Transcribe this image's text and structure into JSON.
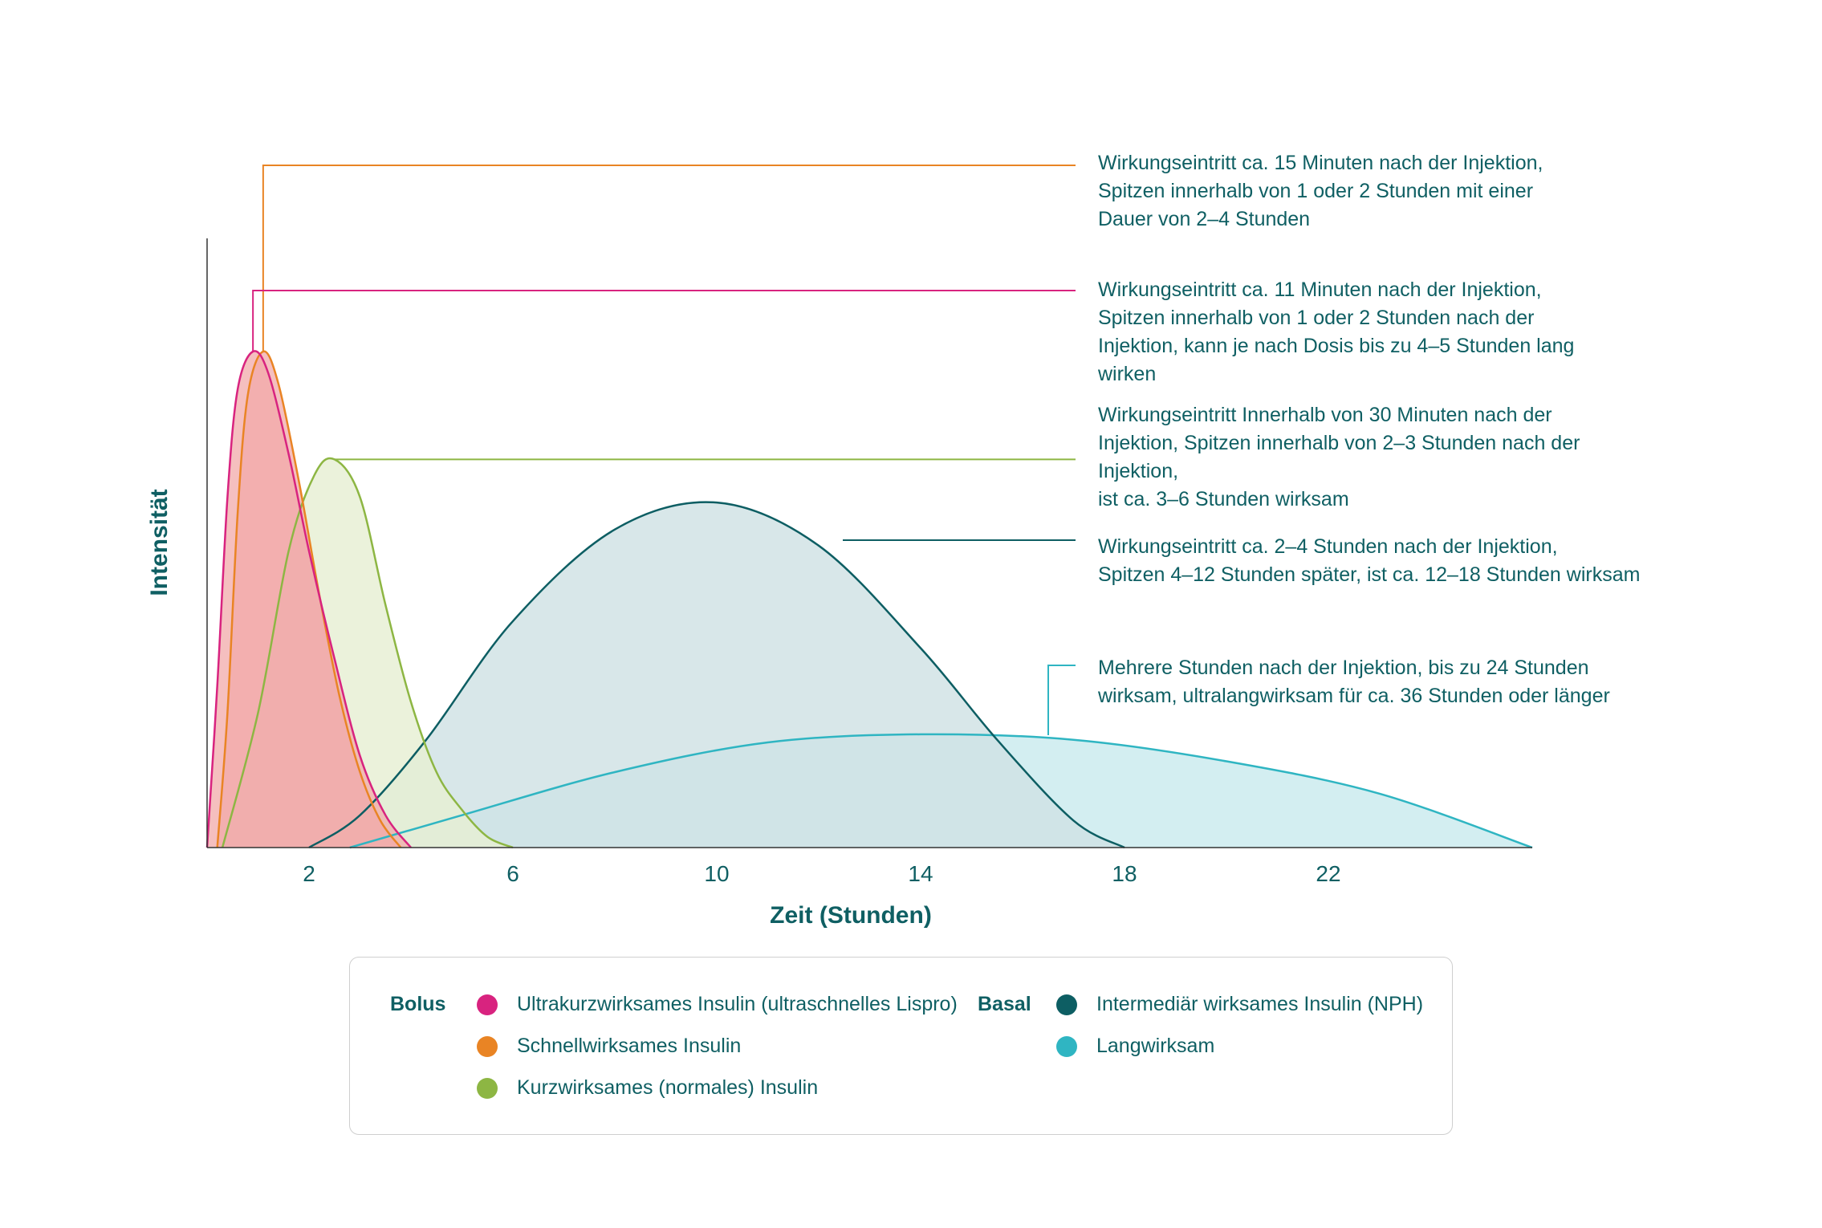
{
  "chart_data": {
    "type": "area",
    "xlabel": "Zeit (Stunden)",
    "ylabel": "Intensität",
    "x_ticks": [
      2,
      6,
      10,
      14,
      18,
      22
    ],
    "xlim": [
      0,
      26
    ],
    "ylim": [
      0,
      1
    ],
    "grid": false,
    "legend_position": "bottom",
    "series": [
      {
        "name": "Ultrakurzwirksames Insulin (ultraschnelles Lispro)",
        "group": "Bolus",
        "color": "#d8237f",
        "fill": "#f2aaa9",
        "peak": [
          0.9,
          0.92
        ],
        "points": [
          [
            0,
            0
          ],
          [
            0.2,
            0.3
          ],
          [
            0.4,
            0.65
          ],
          [
            0.6,
            0.85
          ],
          [
            0.9,
            0.92
          ],
          [
            1.2,
            0.88
          ],
          [
            1.6,
            0.73
          ],
          [
            2,
            0.55
          ],
          [
            2.5,
            0.35
          ],
          [
            3,
            0.17
          ],
          [
            3.5,
            0.06
          ],
          [
            4,
            0
          ]
        ]
      },
      {
        "name": "Schnellwirksames Insulin",
        "group": "Bolus",
        "color": "#e98424",
        "fill": "#f2aaa9",
        "peak": [
          1.1,
          0.92
        ],
        "points": [
          [
            0.2,
            0
          ],
          [
            0.4,
            0.25
          ],
          [
            0.6,
            0.62
          ],
          [
            0.8,
            0.84
          ],
          [
            1.1,
            0.92
          ],
          [
            1.4,
            0.86
          ],
          [
            1.8,
            0.68
          ],
          [
            2.2,
            0.47
          ],
          [
            2.6,
            0.28
          ],
          [
            3,
            0.14
          ],
          [
            3.4,
            0.05
          ],
          [
            3.8,
            0
          ]
        ]
      },
      {
        "name": "Kurzwirksames (normales) Insulin",
        "group": "Bolus",
        "color": "#8db643",
        "fill": "#e6efd3",
        "peak": [
          2.5,
          0.72
        ],
        "points": [
          [
            0.3,
            0
          ],
          [
            1,
            0.25
          ],
          [
            1.6,
            0.55
          ],
          [
            2.1,
            0.69
          ],
          [
            2.5,
            0.72
          ],
          [
            3,
            0.65
          ],
          [
            3.5,
            0.45
          ],
          [
            4,
            0.27
          ],
          [
            4.5,
            0.14
          ],
          [
            5,
            0.07
          ],
          [
            5.5,
            0.02
          ],
          [
            6,
            0
          ]
        ]
      },
      {
        "name": "Intermediär wirksames Insulin (NPH)",
        "group": "Basal",
        "color": "#0d5e63",
        "fill": "#cfe2e4",
        "peak": [
          10,
          0.64
        ],
        "points": [
          [
            2,
            0
          ],
          [
            3,
            0.06
          ],
          [
            4.3,
            0.2
          ],
          [
            6,
            0.42
          ],
          [
            8,
            0.59
          ],
          [
            10,
            0.64
          ],
          [
            12,
            0.56
          ],
          [
            14,
            0.37
          ],
          [
            15.5,
            0.2
          ],
          [
            17,
            0.05
          ],
          [
            18,
            0
          ]
        ]
      },
      {
        "name": "Langwirksam",
        "group": "Basal",
        "color": "#2fb5c2",
        "fill": "#c9eaee",
        "peak": [
          14,
          0.21
        ],
        "points": [
          [
            2.8,
            0
          ],
          [
            5,
            0.06
          ],
          [
            8,
            0.14
          ],
          [
            11,
            0.195
          ],
          [
            14,
            0.21
          ],
          [
            17,
            0.2
          ],
          [
            20,
            0.16
          ],
          [
            23,
            0.1
          ],
          [
            26,
            0
          ]
        ]
      }
    ],
    "annotations": [
      "Wirkungseintritt ca. 15 Minuten nach der Injektion, Spitzen innerhalb von 1 oder 2 Stunden mit einer Dauer von 2–4 Stunden",
      "Wirkungseintritt ca. 11 Minuten nach der Injektion, Spitzen innerhalb von 1 oder 2 Stunden nach der Injektion, kann je nach Dosis bis zu 4–5 Stunden lang wirken",
      "Wirkungseintritt Innerhalb von 30 Minuten nach der Injektion, Spitzen innerhalb von 2–3 Stunden nach der Injektion, ist ca. 3–6 Stunden wirksam",
      "Wirkungseintritt ca. 2–4 Stunden nach der Injektion, Spitzen 4–12 Stunden später, ist ca. 12–18 Stunden wirksam",
      "Mehrere Stunden nach der Injektion, bis zu 24 Stunden wirksam, ultralangwirksam für ca. 36 Stunden oder länger"
    ]
  },
  "annotation_lines": [
    [
      "Wirkungseintritt ca. 15 Minuten nach der Injektion,",
      "Spitzen innerhalb von 1 oder 2 Stunden mit einer",
      "Dauer von 2–4 Stunden"
    ],
    [
      "Wirkungseintritt ca. 11 Minuten nach der Injektion,",
      "Spitzen innerhalb von 1 oder 2 Stunden nach der",
      "Injektion, kann je nach Dosis bis zu 4–5 Stunden lang",
      "wirken"
    ],
    [
      "Wirkungseintritt Innerhalb von 30 Minuten nach der",
      "Injektion, Spitzen innerhalb von 2–3 Stunden nach der",
      "Injektion,",
      "ist ca. 3–6 Stunden wirksam"
    ],
    [
      "Wirkungseintritt ca. 2–4 Stunden nach der Injektion,",
      "Spitzen 4–12 Stunden später, ist ca. 12–18 Stunden wirksam"
    ],
    [
      "Mehrere Stunden nach der Injektion, bis zu 24 Stunden",
      "wirksam, ultralangwirksam für ca. 36 Stunden oder länger"
    ]
  ],
  "legend": {
    "bolus_title": "Bolus",
    "basal_title": "Basal",
    "bolus": [
      {
        "label": "Ultrakurzwirksames Insulin (ultraschnelles Lispro)",
        "color": "#d8237f"
      },
      {
        "label": "Schnellwirksames Insulin",
        "color": "#e98424"
      },
      {
        "label": "Kurzwirksames (normales) Insulin",
        "color": "#8db643"
      }
    ],
    "basal": [
      {
        "label": "Intermediär wirksames Insulin (NPH)",
        "color": "#0d5e63"
      },
      {
        "label": "Langwirksam",
        "color": "#2fb5c2"
      }
    ]
  }
}
